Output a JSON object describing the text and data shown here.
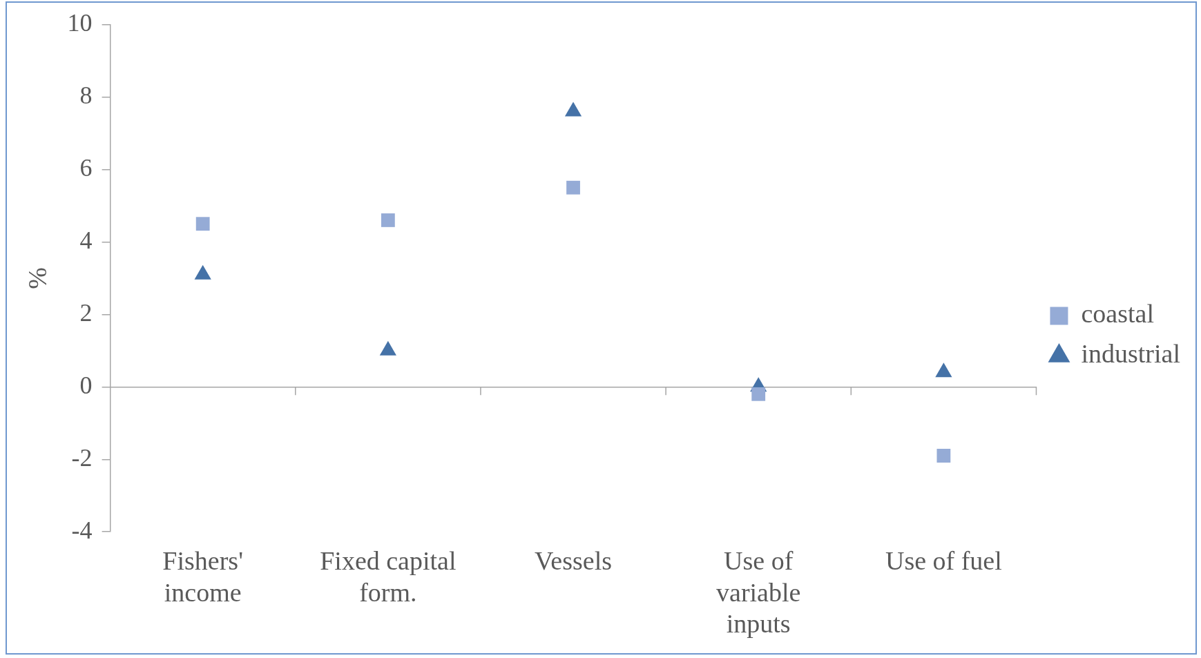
{
  "chart_data": {
    "type": "scatter",
    "ylabel": "%",
    "categories": [
      "Fishers' income",
      "Fixed capital form.",
      "Vessels",
      "Use of variable inputs",
      "Use of fuel"
    ],
    "series": [
      {
        "name": "coastal",
        "color": "#95abd6",
        "marker": "square",
        "values": [
          4.5,
          4.6,
          5.5,
          -0.2,
          -1.9
        ]
      },
      {
        "name": "industrial",
        "color": "#4572a7",
        "marker": "triangle",
        "values": [
          3.1,
          1.0,
          7.6,
          0.0,
          0.4
        ]
      }
    ],
    "ylim": [
      -4,
      10
    ],
    "yticks": [
      -4,
      -2,
      0,
      2,
      4,
      6,
      8,
      10
    ],
    "legend": "right"
  }
}
